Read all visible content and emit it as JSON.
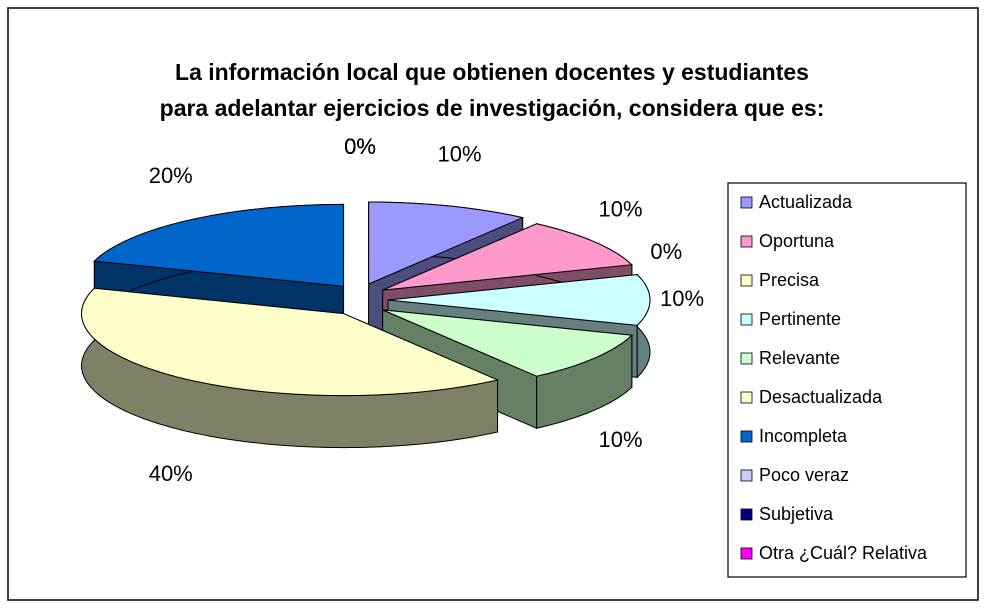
{
  "chart_data": {
    "type": "pie",
    "title": [
      "La información local que obtienen docentes y estudiantes",
      "para adelantar ejercicios de investigación, considera que es:"
    ],
    "categories": [
      "Actualizada",
      "Oportuna",
      "Precisa",
      "Pertinente",
      "Relevante",
      "Desactualizada",
      "Incompleta",
      "Poco veraz",
      "Subjetiva",
      "Otra ¿Cuál? Relativa"
    ],
    "values": [
      10,
      10,
      0,
      10,
      10,
      40,
      20,
      0,
      0,
      0
    ],
    "value_labels": [
      "10%",
      "10%",
      "0%",
      "10%",
      "10%",
      "40%",
      "20%",
      "0%",
      "0%",
      "0%"
    ],
    "colors": [
      "#9999ff",
      "#ff99cc",
      "#ffffcc",
      "#ccffff",
      "#ccffcc",
      "#ffffcc",
      "#0066cc",
      "#ccccff",
      "#000080",
      "#ff00ff"
    ],
    "legend": "right"
  }
}
